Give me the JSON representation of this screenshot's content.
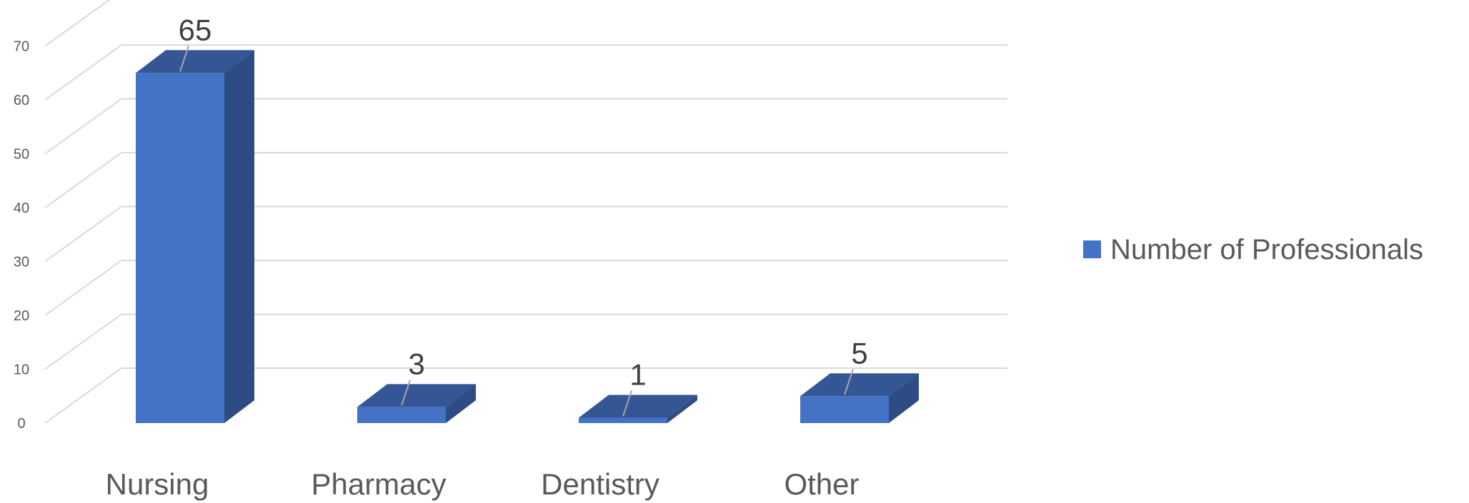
{
  "chart_data": {
    "type": "bar",
    "categories": [
      "Nursing",
      "Pharmacy",
      "Dentistry",
      "Other"
    ],
    "series": [
      {
        "name": "Number of Professionals",
        "values": [
          65,
          3,
          1,
          5
        ],
        "color": "#4472C4"
      }
    ],
    "data_labels": [
      "65",
      "3",
      "1",
      "5"
    ],
    "ylim": [
      0,
      70
    ],
    "yticks": [
      0,
      10,
      20,
      30,
      40,
      50,
      60,
      70
    ],
    "ytick_labels": [
      "0",
      "10",
      "20",
      "30",
      "40",
      "50",
      "60",
      "70"
    ],
    "grid": true,
    "three_d": true,
    "legend": {
      "position": "right",
      "entries": [
        "Number of Professionals"
      ]
    },
    "colors": {
      "front": "#4472C4",
      "side": "#2E4C84",
      "top": "#345694",
      "grid": "#D9D9D9",
      "text": "#595959"
    }
  }
}
